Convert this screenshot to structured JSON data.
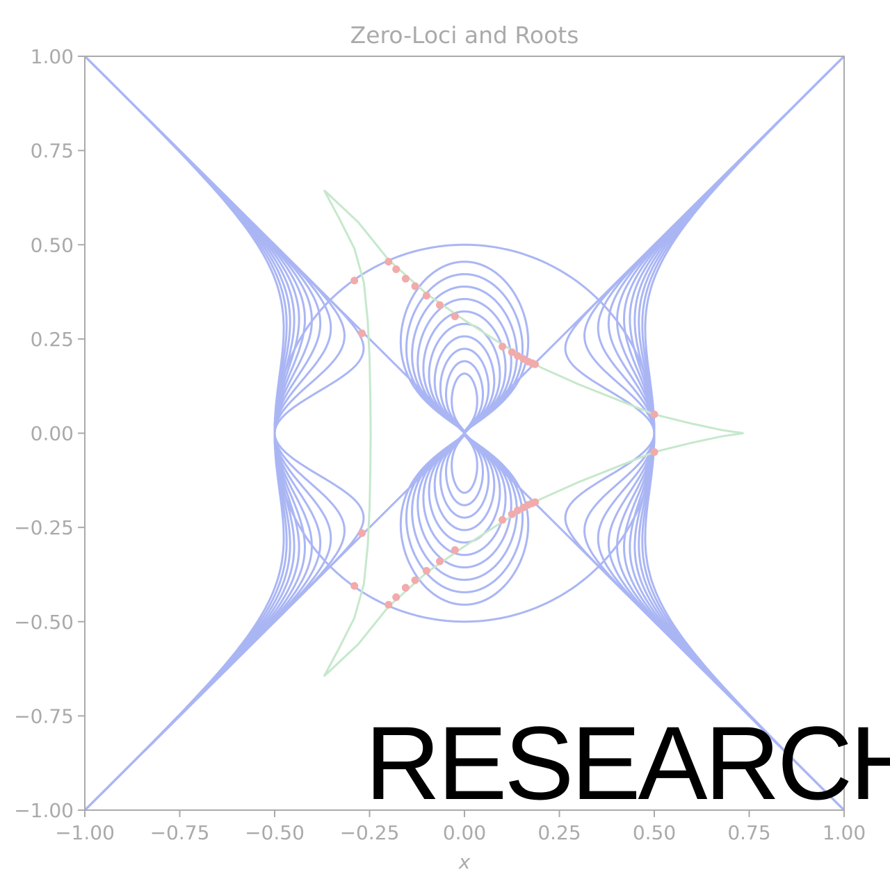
{
  "chart_data": {
    "type": "line",
    "title": "Zero-Loci and Roots",
    "xlabel": "x",
    "ylabel": "",
    "xlim": [
      -1.0,
      1.0
    ],
    "ylim": [
      -1.0,
      1.0
    ],
    "x_ticks": [
      "−1.00",
      "−0.75",
      "−0.50",
      "−0.25",
      "0.00",
      "0.25",
      "0.50",
      "0.75",
      "1.00"
    ],
    "y_ticks": [
      "1.00",
      "0.75",
      "0.50",
      "0.25",
      "0.00",
      "−0.25",
      "−0.50",
      "−0.75",
      "−1.00"
    ],
    "x_tick_values": [
      -1.0,
      -0.75,
      -0.5,
      -0.25,
      0.0,
      0.25,
      0.5,
      0.75,
      1.0
    ],
    "y_tick_values": [
      1.0,
      0.75,
      0.5,
      0.25,
      0.0,
      -0.25,
      -0.5,
      -0.75,
      -1.0
    ],
    "grid": false,
    "legend": "none",
    "colors": {
      "zero_loci": "#aab6f4",
      "root_path": "#c6e8cc",
      "roots": "#f2aaaa",
      "axes": "#aaaaaa",
      "text": "#aaaaaa"
    },
    "series": [
      {
        "kind": "zero-loci family (lemniscate-type level curves, x² = y² / (y² + k) shapes)",
        "k_values": [
          0.0,
          0.002,
          0.006,
          0.012,
          0.02,
          0.03,
          0.042,
          0.056,
          0.072,
          0.09,
          0.11
        ],
        "lemniscate_offsets": [
          0.0,
          0.0012,
          0.004,
          0.009,
          0.016,
          0.025,
          0.036,
          0.049,
          0.064,
          0.081,
          0.1
        ]
      },
      {
        "kind": "root path (deltoid-like curve)",
        "points": [
          [
            -0.37,
            0.645
          ],
          [
            -0.33,
            0.57
          ],
          [
            -0.29,
            0.49
          ],
          [
            -0.265,
            0.4
          ],
          [
            -0.255,
            0.3
          ],
          [
            -0.25,
            0.2
          ],
          [
            -0.248,
            0.1
          ],
          [
            -0.247,
            0.0
          ],
          [
            -0.248,
            -0.1
          ],
          [
            -0.25,
            -0.2
          ],
          [
            -0.255,
            -0.3
          ],
          [
            -0.265,
            -0.4
          ],
          [
            -0.29,
            -0.49
          ],
          [
            -0.33,
            -0.57
          ],
          [
            -0.37,
            -0.645
          ],
          [
            -0.28,
            -0.56
          ],
          [
            -0.2,
            -0.46
          ],
          [
            -0.1,
            -0.37
          ],
          [
            0.0,
            -0.3
          ],
          [
            0.1,
            -0.235
          ],
          [
            0.2,
            -0.175
          ],
          [
            0.3,
            -0.13
          ],
          [
            0.4,
            -0.09
          ],
          [
            0.5,
            -0.05
          ],
          [
            0.6,
            -0.025
          ],
          [
            0.68,
            -0.008
          ],
          [
            0.735,
            0.0
          ],
          [
            0.68,
            0.008
          ],
          [
            0.6,
            0.025
          ],
          [
            0.5,
            0.05
          ],
          [
            0.4,
            0.09
          ],
          [
            0.3,
            0.13
          ],
          [
            0.2,
            0.175
          ],
          [
            0.1,
            0.235
          ],
          [
            0.0,
            0.3
          ],
          [
            -0.1,
            0.37
          ],
          [
            -0.2,
            0.46
          ],
          [
            -0.28,
            0.56
          ],
          [
            -0.37,
            0.645
          ]
        ]
      },
      {
        "kind": "roots",
        "points": [
          [
            -0.29,
            0.405
          ],
          [
            -0.27,
            0.265
          ],
          [
            -0.2,
            0.455
          ],
          [
            -0.18,
            0.435
          ],
          [
            -0.155,
            0.41
          ],
          [
            -0.13,
            0.39
          ],
          [
            -0.1,
            0.365
          ],
          [
            -0.065,
            0.34
          ],
          [
            -0.025,
            0.31
          ],
          [
            0.1,
            0.23
          ],
          [
            0.125,
            0.215
          ],
          [
            0.14,
            0.205
          ],
          [
            0.155,
            0.197
          ],
          [
            0.168,
            0.19
          ],
          [
            0.178,
            0.186
          ],
          [
            0.186,
            0.183
          ],
          [
            0.5,
            0.05
          ],
          [
            0.5,
            -0.05
          ],
          [
            -0.29,
            -0.405
          ],
          [
            -0.27,
            -0.265
          ],
          [
            -0.2,
            -0.455
          ],
          [
            -0.18,
            -0.435
          ],
          [
            -0.155,
            -0.41
          ],
          [
            -0.13,
            -0.39
          ],
          [
            -0.1,
            -0.365
          ],
          [
            -0.065,
            -0.34
          ],
          [
            -0.025,
            -0.31
          ],
          [
            0.1,
            -0.23
          ],
          [
            0.125,
            -0.215
          ],
          [
            0.14,
            -0.205
          ],
          [
            0.155,
            -0.197
          ],
          [
            0.168,
            -0.19
          ],
          [
            0.178,
            -0.186
          ],
          [
            0.186,
            -0.183
          ]
        ]
      }
    ]
  },
  "overlay_text": "RESEARCH"
}
